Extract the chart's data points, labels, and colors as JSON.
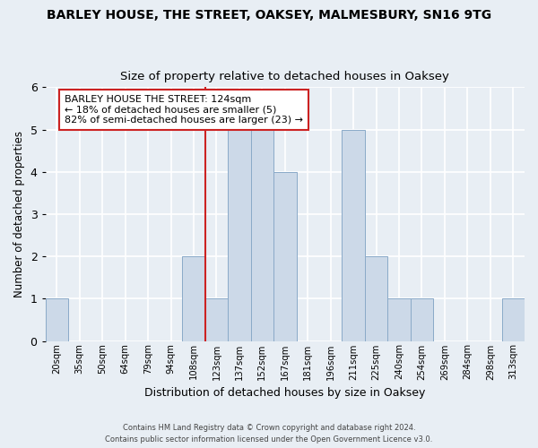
{
  "title": "BARLEY HOUSE, THE STREET, OAKSEY, MALMESBURY, SN16 9TG",
  "subtitle": "Size of property relative to detached houses in Oaksey",
  "xlabel": "Distribution of detached houses by size in Oaksey",
  "ylabel": "Number of detached properties",
  "bin_labels": [
    "20sqm",
    "35sqm",
    "50sqm",
    "64sqm",
    "79sqm",
    "94sqm",
    "108sqm",
    "123sqm",
    "137sqm",
    "152sqm",
    "167sqm",
    "181sqm",
    "196sqm",
    "211sqm",
    "225sqm",
    "240sqm",
    "254sqm",
    "269sqm",
    "284sqm",
    "298sqm",
    "313sqm"
  ],
  "bar_values": [
    1,
    0,
    0,
    0,
    0,
    0,
    2,
    1,
    5,
    5,
    4,
    0,
    0,
    5,
    2,
    1,
    1,
    0,
    0,
    0,
    1
  ],
  "bar_color": "#ccd9e8",
  "bar_edge_color": "#8aaac8",
  "highlight_index": 7,
  "highlight_line_color": "#cc2222",
  "ylim": [
    0,
    6
  ],
  "yticks": [
    0,
    1,
    2,
    3,
    4,
    5,
    6
  ],
  "annotation_title": "BARLEY HOUSE THE STREET: 124sqm",
  "annotation_line1": "← 18% of detached houses are smaller (5)",
  "annotation_line2": "82% of semi-detached houses are larger (23) →",
  "annotation_box_color": "#ffffff",
  "annotation_box_edge": "#cc2222",
  "footer1": "Contains HM Land Registry data © Crown copyright and database right 2024.",
  "footer2": "Contains public sector information licensed under the Open Government Licence v3.0.",
  "bg_color": "#e8eef4",
  "plot_bg_color": "#e8eef4"
}
